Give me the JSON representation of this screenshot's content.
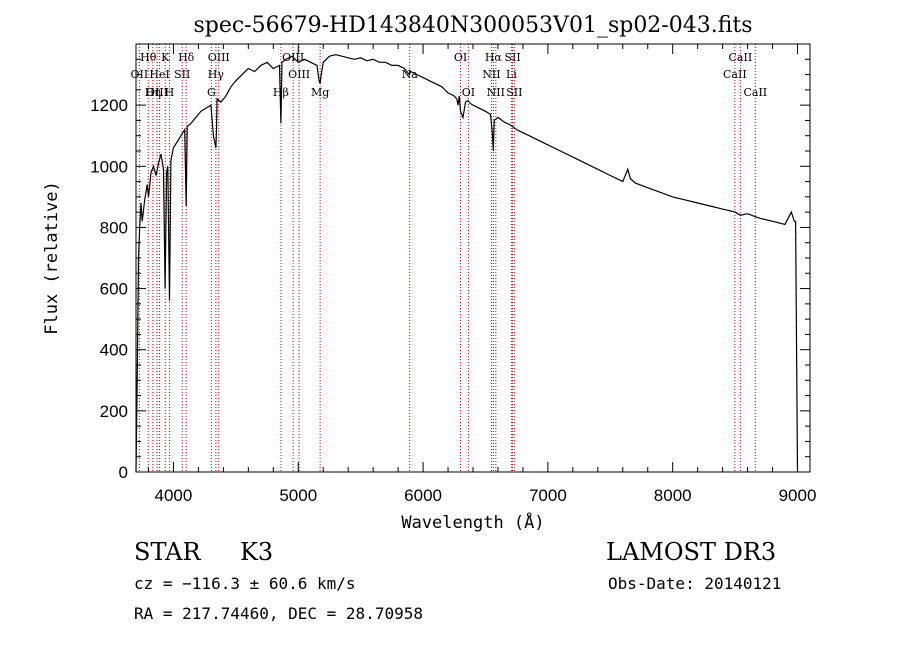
{
  "chart_data": {
    "type": "line",
    "title": "spec-56679-HD143840N300053V01_sp02-043.fits",
    "xlabel": "Wavelength (Å)",
    "ylabel": "Flux (relative)",
    "xlim": [
      3700,
      9100
    ],
    "ylim": [
      0,
      1400
    ],
    "xticks": [
      4000,
      5000,
      6000,
      7000,
      8000,
      9000
    ],
    "yticks": [
      0,
      200,
      400,
      600,
      800,
      1000,
      1200
    ],
    "series": [
      {
        "name": "flux",
        "x": [
          3700,
          3710,
          3720,
          3730,
          3740,
          3750,
          3770,
          3790,
          3800,
          3820,
          3840,
          3860,
          3880,
          3900,
          3920,
          3933,
          3945,
          3955,
          3968,
          3980,
          4000,
          4030,
          4060,
          4090,
          4102,
          4110,
          4140,
          4180,
          4220,
          4260,
          4300,
          4320,
          4340,
          4345,
          4350,
          4380,
          4420,
          4460,
          4500,
          4550,
          4600,
          4650,
          4700,
          4750,
          4800,
          4850,
          4861,
          4870,
          4900,
          4950,
          5000,
          5050,
          5100,
          5150,
          5167,
          5175,
          5184,
          5200,
          5250,
          5300,
          5350,
          5400,
          5450,
          5500,
          5550,
          5600,
          5650,
          5700,
          5750,
          5800,
          5850,
          5890,
          5900,
          5950,
          6000,
          6050,
          6100,
          6150,
          6200,
          6250,
          6270,
          6280,
          6290,
          6300,
          6320,
          6340,
          6360,
          6380,
          6400,
          6450,
          6500,
          6540,
          6555,
          6563,
          6570,
          6600,
          6650,
          6700,
          6750,
          6800,
          6850,
          6900,
          6950,
          7000,
          7100,
          7200,
          7300,
          7400,
          7500,
          7600,
          7640,
          7660,
          7700,
          7800,
          7900,
          8000,
          8100,
          8200,
          8300,
          8400,
          8500,
          8542,
          8600,
          8662,
          8700,
          8800,
          8900,
          8950,
          8975,
          8985,
          9000
        ],
        "values": [
          0,
          300,
          700,
          800,
          880,
          820,
          890,
          940,
          900,
          980,
          1000,
          970,
          1010,
          1040,
          990,
          600,
          980,
          1000,
          560,
          1020,
          1060,
          1080,
          1100,
          1120,
          870,
          1130,
          1140,
          1160,
          1180,
          1190,
          1200,
          1100,
          1060,
          1120,
          1220,
          1210,
          1230,
          1260,
          1280,
          1300,
          1320,
          1310,
          1330,
          1340,
          1320,
          1330,
          1140,
          1340,
          1350,
          1360,
          1340,
          1350,
          1340,
          1330,
          1280,
          1270,
          1300,
          1340,
          1360,
          1365,
          1360,
          1355,
          1350,
          1355,
          1345,
          1350,
          1340,
          1340,
          1330,
          1330,
          1320,
          1300,
          1310,
          1300,
          1290,
          1280,
          1270,
          1260,
          1240,
          1230,
          1220,
          1200,
          1230,
          1180,
          1160,
          1210,
          1215,
          1205,
          1200,
          1190,
          1180,
          1170,
          1110,
          1050,
          1150,
          1160,
          1145,
          1135,
          1120,
          1110,
          1100,
          1090,
          1080,
          1070,
          1050,
          1030,
          1010,
          990,
          970,
          950,
          990,
          960,
          945,
          930,
          915,
          900,
          890,
          880,
          870,
          860,
          850,
          840,
          845,
          835,
          830,
          820,
          810,
          850,
          820,
          820,
          0
        ]
      }
    ],
    "lines": [
      {
        "label": "Hθ",
        "x": 3798,
        "row": 0
      },
      {
        "label": "K",
        "x": 3934,
        "row": 0
      },
      {
        "label": "Hδ",
        "x": 4102,
        "row": 0
      },
      {
        "label": "OII",
        "x": 3727,
        "row": 1
      },
      {
        "label": "HeI",
        "x": 3889,
        "row": 1
      },
      {
        "label": "SII",
        "x": 4070,
        "row": 1
      },
      {
        "label": "OIII",
        "x": 3869,
        "row": 2
      },
      {
        "label": "Hη",
        "x": 3835,
        "row": 2
      },
      {
        "label": "H",
        "x": 3968,
        "row": 2
      },
      {
        "label": "OIII",
        "x": 4363,
        "row": 0
      },
      {
        "label": "Hγ",
        "x": 4340,
        "row": 1
      },
      {
        "label": "G",
        "x": 4304,
        "row": 2
      },
      {
        "label": "OIII",
        "x": 4959,
        "row": 0
      },
      {
        "label": "OIII",
        "x": 5007,
        "row": 1
      },
      {
        "label": "Hβ",
        "x": 4861,
        "row": 2
      },
      {
        "label": "Mg",
        "x": 5175,
        "row": 2
      },
      {
        "label": "Na",
        "x": 5893,
        "row": 1
      },
      {
        "label": "OI",
        "x": 6300,
        "row": 0
      },
      {
        "label": "OI",
        "x": 6363,
        "row": 2
      },
      {
        "label": "Hα",
        "x": 6563,
        "row": 0
      },
      {
        "label": "SII",
        "x": 6717,
        "row": 0
      },
      {
        "label": "NII",
        "x": 6548,
        "row": 1
      },
      {
        "label": "Li",
        "x": 6708,
        "row": 1
      },
      {
        "label": "NII",
        "x": 6583,
        "row": 2
      },
      {
        "label": "SII",
        "x": 6731,
        "row": 2
      },
      {
        "label": "CaII",
        "x": 8542,
        "row": 0
      },
      {
        "label": "CaII",
        "x": 8498,
        "row": 1
      },
      {
        "label": "CaII",
        "x": 8662,
        "row": 2
      }
    ]
  },
  "info": {
    "object_class": "STAR",
    "subclass": "K3",
    "survey": "LAMOST DR3",
    "redshift": "cz = −116.3 ± 60.6 km/s",
    "obs_date": "Obs-Date: 20140121",
    "coords": "RA = 217.74460, DEC =  28.70958"
  }
}
